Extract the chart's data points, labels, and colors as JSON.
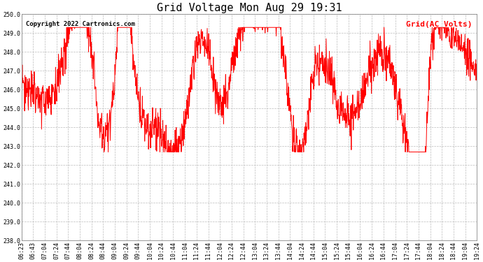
{
  "title": "Grid Voltage Mon Aug 29 19:31",
  "legend_label": "Grid(AC Volts)",
  "legend_color": "#ff0000",
  "copyright_text": "Copyright 2022 Cartronics.com",
  "copyright_color": "#000000",
  "line_color": "#ff0000",
  "background_color": "#ffffff",
  "plot_bg_color": "#ffffff",
  "grid_color": "#bbbbbb",
  "grid_style": "--",
  "ylim": [
    238.0,
    250.0
  ],
  "ytick_step": 1.0,
  "x_labels": [
    "06:23",
    "06:43",
    "07:04",
    "07:24",
    "07:44",
    "08:04",
    "08:24",
    "08:44",
    "09:04",
    "09:24",
    "09:44",
    "10:04",
    "10:24",
    "10:44",
    "11:04",
    "11:24",
    "11:44",
    "12:04",
    "12:24",
    "12:44",
    "13:04",
    "13:24",
    "13:44",
    "14:04",
    "14:24",
    "14:44",
    "15:04",
    "15:24",
    "15:44",
    "16:04",
    "16:24",
    "16:44",
    "17:04",
    "17:24",
    "17:44",
    "18:04",
    "18:24",
    "18:44",
    "19:04",
    "19:24"
  ],
  "title_fontsize": 11,
  "label_fontsize": 6,
  "legend_fontsize": 8,
  "copyright_fontsize": 6.5,
  "line_width": 0.7,
  "figsize": [
    6.9,
    3.75
  ],
  "dpi": 100
}
